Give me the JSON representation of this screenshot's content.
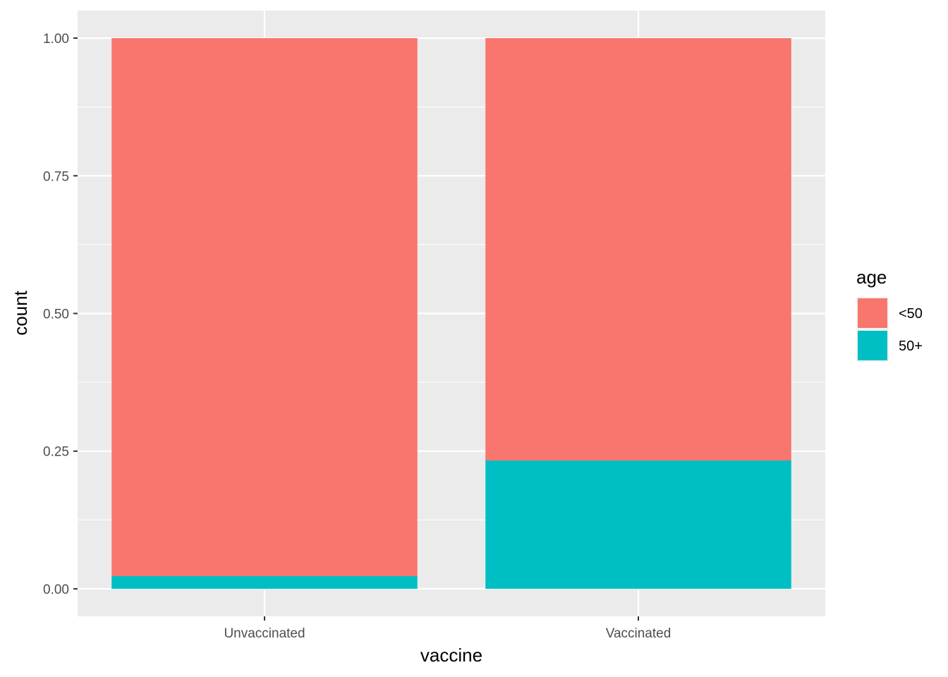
{
  "chart_data": {
    "type": "bar",
    "stacked": true,
    "categories": [
      "Unvaccinated",
      "Vaccinated"
    ],
    "series": [
      {
        "name": "<50",
        "color": "#F8766D",
        "values": [
          0.977,
          0.767
        ]
      },
      {
        "name": "50+",
        "color": "#00BFC4",
        "values": [
          0.023,
          0.233
        ]
      }
    ],
    "xlabel": "vaccine",
    "ylabel": "count",
    "ylim": [
      -0.05,
      1.05
    ],
    "yticks": [
      0,
      0.25,
      0.5,
      0.75,
      1
    ],
    "ytick_labels": [
      "0.00",
      "0.25",
      "0.50",
      "0.75",
      "1.00"
    ],
    "legend": {
      "title": "age",
      "placement": "right"
    },
    "grid": true,
    "panel_background": "#EBEBEB",
    "grid_color": "#FFFFFF"
  }
}
